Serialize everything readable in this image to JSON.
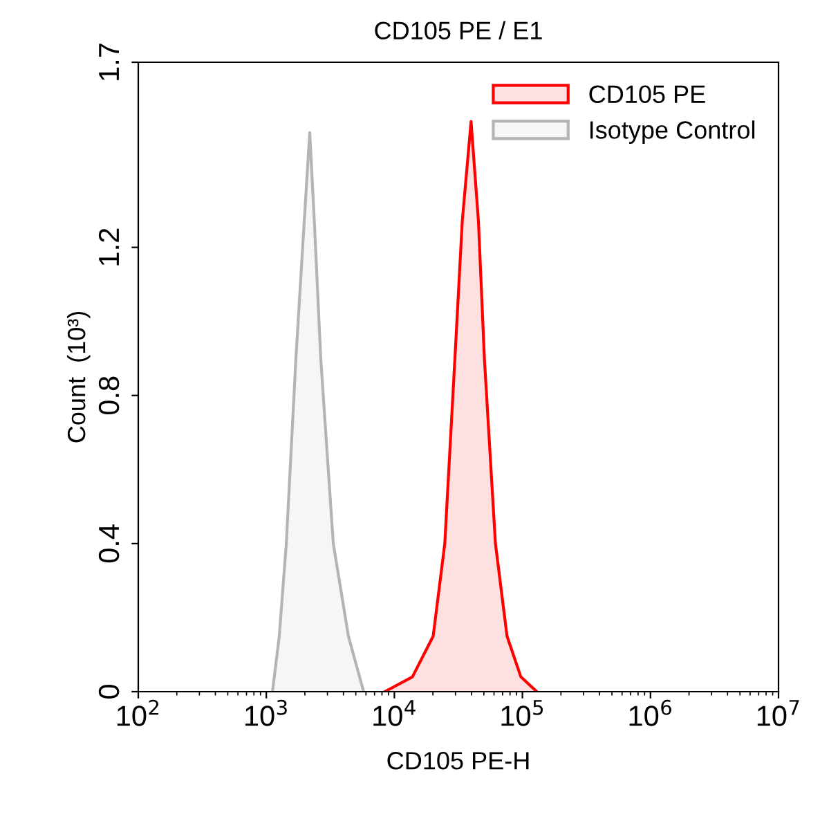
{
  "chart_data": {
    "type": "area",
    "title": "CD105 PE / E1",
    "xlabel": "CD105 PE-H",
    "ylabel": "Count  (10³)",
    "log": "x",
    "xlim": [
      100,
      10000000
    ],
    "xticks": [
      {
        "value": 100,
        "label": "10$^{2}$"
      },
      {
        "value": 1000,
        "label": "10$^{3}$"
      },
      {
        "value": 10000,
        "label": "10$^{4}$"
      },
      {
        "value": 100000,
        "label": "10$^{5}$"
      },
      {
        "value": 1000000,
        "label": "10$^{6}$"
      },
      {
        "value": 10000000,
        "label": "10$^{7}$"
      }
    ],
    "ylim": [
      0,
      1.7
    ],
    "yticks": [
      0,
      0.4,
      0.8,
      1.2,
      1.7
    ],
    "grid": false,
    "legend": "top right",
    "series": [
      {
        "name": "CD105 PE",
        "color": "#ff0000",
        "x": [
          8414,
          13830,
          20090,
          24760,
          29700,
          33890,
          39710,
          45360,
          50470,
          61560,
          75820,
          97230,
          129700
        ],
        "values": [
          0,
          0.04,
          0.15,
          0.4,
          0.9,
          1.27,
          1.54,
          1.27,
          0.9,
          0.4,
          0.15,
          0.04,
          0
        ]
      },
      {
        "name": "Isotype Control",
        "color": "#b4b4b4",
        "x": [
          1117,
          1262,
          1432,
          1702,
          1977,
          2183,
          2371,
          2661,
          3334,
          4375,
          5754
        ],
        "values": [
          0,
          0.15,
          0.4,
          0.9,
          1.27,
          1.51,
          1.27,
          0.9,
          0.4,
          0.15,
          0
        ]
      }
    ]
  }
}
